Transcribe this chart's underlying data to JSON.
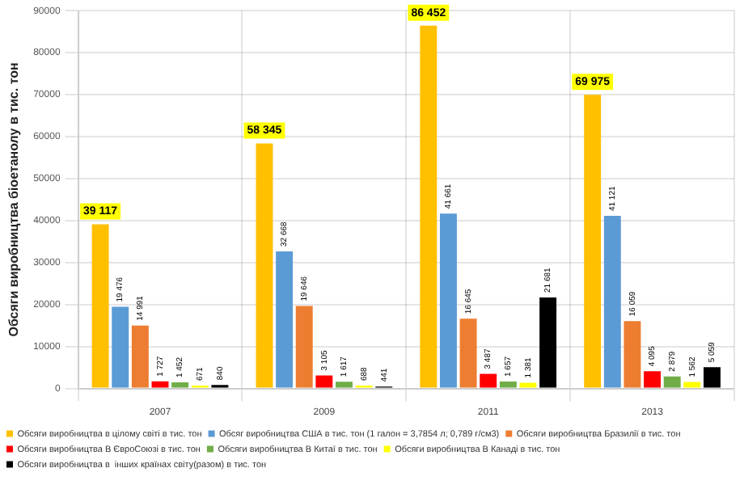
{
  "chart_data": {
    "type": "bar",
    "ylabel": "Обсяги виробництва біоетанолу в тис. тон",
    "categories": [
      "2007",
      "2009",
      "2011",
      "2013"
    ],
    "ylim": [
      0,
      90000
    ],
    "yticks": [
      0,
      10000,
      20000,
      30000,
      40000,
      50000,
      60000,
      70000,
      80000,
      90000
    ],
    "grid": true,
    "legend": "bottom",
    "series": [
      {
        "name": "Обсяги виробництва в цілому світі в тис. тон",
        "color": "#ffc000",
        "values": [
          39117,
          58345,
          86452,
          69975
        ],
        "value_labels": [
          "39 117",
          "58 345",
          "86 452",
          "69 975"
        ]
      },
      {
        "name": "Обсяг виробництва США в тис. тон (1 галон = 3,7854 л; 0,789 г/см3)",
        "color": "#5b9bd5",
        "values": [
          19476,
          32668,
          41661,
          41121
        ],
        "value_labels": [
          "19 476",
          "32 668",
          "41 661",
          "41 121"
        ]
      },
      {
        "name": "Обсяги виробництва Бразилії в тис. тон",
        "color": "#ed7d31",
        "values": [
          14991,
          19646,
          16645,
          16059
        ],
        "value_labels": [
          "14 991",
          "19 646",
          "16 645",
          "16 059"
        ]
      },
      {
        "name": "Обсяги виробництва В ЄвроСоюзі в тис. тон",
        "color": "#ff0000",
        "values": [
          1727,
          3105,
          3487,
          4095
        ],
        "value_labels": [
          "1 727",
          "3 105",
          "3 487",
          "4 095"
        ]
      },
      {
        "name": "Обсяги виробництва В Китаї в тис. тон",
        "color": "#70ad47",
        "values": [
          1452,
          1617,
          1657,
          2879
        ],
        "value_labels": [
          "1 452",
          "1 617",
          "1 657",
          "2 879"
        ]
      },
      {
        "name": "Обсяги виробництва В Канаді в тис. тон",
        "color": "#ffff00",
        "values": [
          671,
          688,
          1381,
          1562
        ],
        "value_labels": [
          "671",
          "688",
          "1 381",
          "1 562"
        ]
      },
      {
        "name": "Обсяги виробництва в  інших країнах світу(разом) в тис. тон",
        "color": "#000000",
        "values": [
          840,
          441,
          21681,
          5059
        ],
        "value_labels": [
          "840",
          "441",
          "21 681",
          "5 059"
        ]
      }
    ]
  }
}
